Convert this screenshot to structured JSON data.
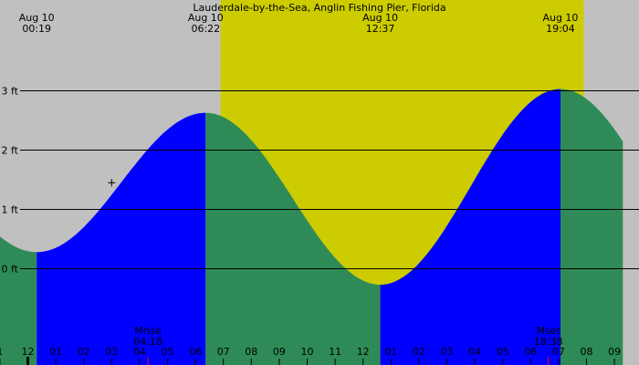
{
  "chart_data": {
    "type": "area",
    "title": "Lauderdale-by-the-Sea, Anglin Fishing Pier, Florida",
    "ylim": [
      -1.0,
      3.1
    ],
    "xlim_hours": [
      -1.5,
      21.3
    ],
    "y_ticks": [
      {
        "value": 0,
        "label": "0 ft"
      },
      {
        "value": 1,
        "label": "1 ft"
      },
      {
        "value": 2,
        "label": "2 ft"
      },
      {
        "value": 3,
        "label": "3 ft"
      }
    ],
    "hour_ticks": [
      {
        "hour": -1,
        "label": "1"
      },
      {
        "hour": 0,
        "label": "12"
      },
      {
        "hour": 1,
        "label": "01"
      },
      {
        "hour": 2,
        "label": "02"
      },
      {
        "hour": 3,
        "label": "03"
      },
      {
        "hour": 4,
        "label": "04"
      },
      {
        "hour": 5,
        "label": "05"
      },
      {
        "hour": 6,
        "label": "06"
      },
      {
        "hour": 7,
        "label": "07"
      },
      {
        "hour": 8,
        "label": "08"
      },
      {
        "hour": 9,
        "label": "09"
      },
      {
        "hour": 10,
        "label": "10"
      },
      {
        "hour": 11,
        "label": "11"
      },
      {
        "hour": 12,
        "label": "12"
      },
      {
        "hour": 13,
        "label": "01"
      },
      {
        "hour": 14,
        "label": "02"
      },
      {
        "hour": 15,
        "label": "03"
      },
      {
        "hour": 16,
        "label": "04"
      },
      {
        "hour": 17,
        "label": "05"
      },
      {
        "hour": 18,
        "label": "06"
      },
      {
        "hour": 19,
        "label": "07"
      },
      {
        "hour": 20,
        "label": "08"
      },
      {
        "hour": 21,
        "label": "09"
      }
    ],
    "extremes": [
      {
        "date": "Aug 10",
        "time": "00:19",
        "hour": 0.317,
        "height": 0.28,
        "kind": "low"
      },
      {
        "date": "Aug 10",
        "time": "06:22",
        "hour": 6.367,
        "height": 2.63,
        "kind": "high"
      },
      {
        "date": "Aug 10",
        "time": "12:37",
        "hour": 12.617,
        "height": -0.27,
        "kind": "low"
      },
      {
        "date": "Aug 10",
        "time": "19:04",
        "hour": 19.067,
        "height": 3.03,
        "kind": "high"
      }
    ],
    "daylight": {
      "sunrise_hour": 6.9,
      "sunset_hour": 19.9
    },
    "moon": [
      {
        "label": "Mrise",
        "time": "04:18",
        "hour": 4.3
      },
      {
        "label": "Mset",
        "time": "18:38",
        "hour": 18.633
      }
    ],
    "marker_value": {
      "hour": 3.0,
      "height": 1.45
    },
    "colors": {
      "night": "#c0c0c0",
      "day": "#cccc00",
      "rising": "#0000ff",
      "falling": "#2e8b57",
      "moon_tick": "#ff0000",
      "grid": "#000000"
    }
  }
}
